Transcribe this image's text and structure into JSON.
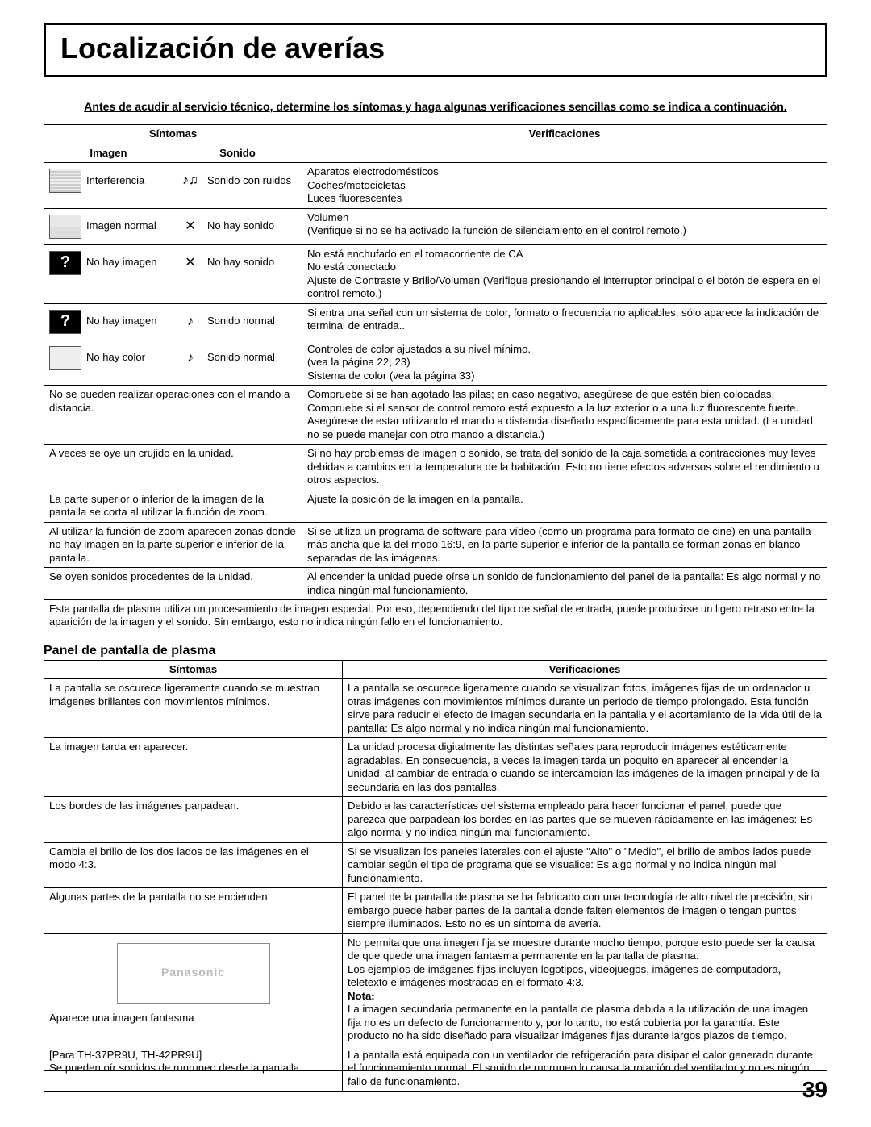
{
  "title": "Localización de averías",
  "intro": "Antes de acudir al servicio técnico, determine los síntomas y haga algunas verificaciones sencillas como se indica a continuación.",
  "headers": {
    "sintomas": "Síntomas",
    "imagen": "Imagen",
    "sonido": "Sonido",
    "verificaciones": "Verificaciones"
  },
  "rows": [
    {
      "img_icon": "noise",
      "img_label": "Interferencia",
      "snd_icon": "♪♫",
      "snd_label": "Sonido con ruidos",
      "ver": "Aparatos electrodomésticos\nCoches/motocicletas\nLuces fluorescentes"
    },
    {
      "img_icon": "normal",
      "img_label": "Imagen normal",
      "snd_icon": "✕",
      "snd_label": "No hay sonido",
      "ver": "Volumen\n(Verifique si no se ha activado la función de silenciamiento en el control remoto.)"
    },
    {
      "img_icon": "black",
      "img_label": "No hay imagen",
      "snd_icon": "✕",
      "snd_label": "No hay sonido",
      "ver": "No está enchufado en el tomacorriente de CA\nNo está conectado\nAjuste de Contraste y Brillo/Volumen (Verifique presionando el interruptor principal o el botón de espera en el control remoto.)"
    },
    {
      "img_icon": "black",
      "img_label": "No hay imagen",
      "snd_icon": "♪",
      "snd_label": "Sonido normal",
      "ver": "Si entra una señal con un sistema de color, formato o frecuencia no aplicables, sólo aparece la indicación de terminal de entrada.."
    },
    {
      "img_icon": "color",
      "img_label": "No hay color",
      "snd_icon": "♪",
      "snd_label": "Sonido normal",
      "ver": "Controles de color ajustados a su nivel mínimo.\n(vea la página 22, 23)\nSistema de color (vea la página 33)"
    }
  ],
  "wide": [
    {
      "sym": "No se pueden realizar operaciones con el mando a distancia.",
      "ver": "Compruebe si se han agotado las pilas; en caso negativo, asegúrese de que estén bien colocadas.\nCompruebe si el sensor de control remoto está expuesto a la luz exterior o a una luz fluorescente fuerte.\nAsegúrese de estar utilizando el mando a distancia diseñado específicamente para esta unidad. (La unidad no se puede manejar con otro mando a distancia.)"
    },
    {
      "sym": "A veces se oye un crujido en la unidad.",
      "ver": "Si no hay problemas de imagen o sonido, se trata del sonido de la caja sometida a contracciones muy leves debidas a cambios en la temperatura de la habitación. Esto no tiene efectos adversos sobre el rendimiento u otros aspectos."
    },
    {
      "sym": "La parte superior o inferior de la imagen de la pantalla se corta al utilizar la función de zoom.",
      "ver": "Ajuste la posición de la imagen en la pantalla."
    },
    {
      "sym": "Al utilizar la función de zoom aparecen zonas donde no hay imagen en la parte superior e inferior de la pantalla.",
      "ver": "Si se utiliza un programa de software para vídeo (como un programa para formato de cine) en una pantalla más ancha que la del modo 16:9, en la parte superior e inferior de la pantalla se forman zonas en blanco separadas de las imágenes."
    },
    {
      "sym": "Se oyen sonidos procedentes de la unidad.",
      "ver": "Al encender la unidad puede oírse un sonido de funcionamiento del panel de la pantalla: Es algo normal y no indica ningún mal funcionamiento."
    }
  ],
  "footnote": "Esta pantalla de plasma utiliza un procesamiento de imagen especial. Por eso, dependiendo del tipo de señal de entrada, puede producirse un ligero retraso entre la aparición de la imagen y el sonido. Sin embargo, esto no indica ningún fallo en el funcionamiento.",
  "panel_heading": "Panel de pantalla de plasma",
  "plasma": [
    {
      "sym": "La pantalla se oscurece ligeramente cuando se muestran imágenes brillantes con movimientos mínimos.",
      "ver": "La pantalla se oscurece ligeramente cuando se visualizan fotos, imágenes fijas de un ordenador u otras imágenes con movimientos mínimos durante un periodo de tiempo prolongado. Esta función sirve para reducir el efecto de imagen secundaria en la pantalla y el acortamiento de la vida útil de la pantalla: Es algo normal y no indica ningún mal funcionamiento."
    },
    {
      "sym": "La imagen tarda en aparecer.",
      "ver": "La unidad procesa digitalmente las distintas señales para reproducir imágenes estéticamente agradables. En consecuencia, a veces la imagen tarda un poquito en aparecer al encender la unidad, al cambiar de entrada o cuando se intercambian las imágenes de la imagen principal y de la secundaria en las dos pantallas."
    },
    {
      "sym": "Los bordes de las imágenes parpadean.",
      "ver": "Debido a las características del sistema empleado para hacer funcionar el panel, puede que parezca que parpadean los bordes en las partes que se mueven rápidamente en las imágenes: Es algo normal y no indica ningún mal funcionamiento."
    },
    {
      "sym": "Cambia el brillo de los dos lados de las imágenes en el modo 4:3.",
      "ver": "Si se visualizan los paneles laterales con el ajuste \"Alto\" o \"Medio\", el brillo de ambos lados puede cambiar según el tipo de programa que se visualice: Es algo normal y no indica ningún mal funcionamiento."
    },
    {
      "sym": "Algunas partes de la pantalla no se encienden.",
      "ver": "El panel de la pantalla de plasma se ha fabricado con una tecnología de alto nivel de precisión, sin embargo puede haber partes de la pantalla donde falten elementos de imagen o tengan puntos siempre iluminados. Esto no es un síntoma de avería."
    }
  ],
  "ghost": {
    "brand": "Panasonic",
    "caption": "Aparece una imagen fantasma",
    "ver1": "No permita que una imagen fija se muestre durante mucho tiempo, porque esto puede ser la causa de que quede una imagen fantasma permanente en la pantalla de plasma.\nLos ejemplos de imágenes fijas incluyen logotipos, videojuegos, imágenes de computadora, teletexto e imágenes mostradas en el formato 4:3.",
    "nota": "Nota:",
    "ver2": "La imagen secundaria permanente en la pantalla de plasma debida a la utilización de una imagen fija no es un defecto de funcionamiento y, por lo tanto, no está cubierta por la garantía. Este producto no ha sido diseñado para visualizar imágenes fijas durante largos plazos de tiempo."
  },
  "fan": {
    "sym": "[Para TH-37PR9U, TH-42PR9U]\nSe pueden oír sonidos de runruneo desde la pantalla.",
    "ver": "La pantalla está equipada con un ventilador de refrigeración para disipar el calor generado durante el funcionamiento normal. El sonido de runruneo lo causa la rotación del ventilador y no es ningún fallo de funcionamiento."
  },
  "page_number": "39"
}
